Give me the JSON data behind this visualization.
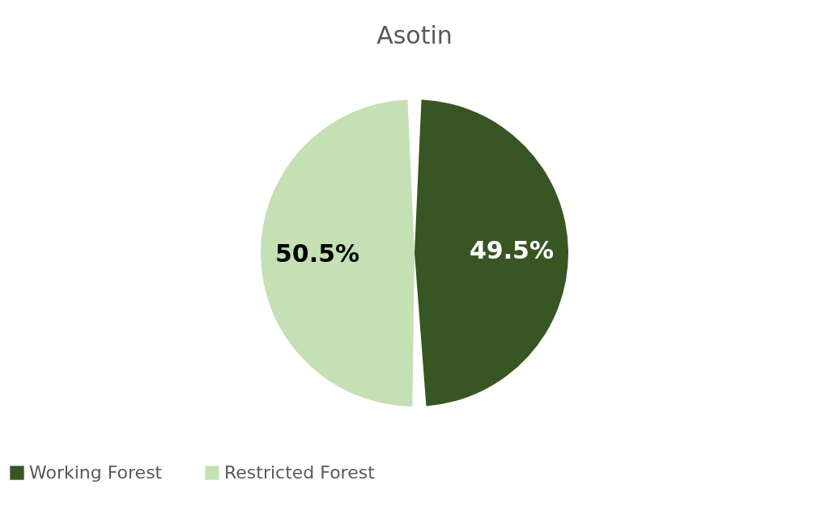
{
  "chart_data": {
    "type": "pie",
    "title": "Asotin",
    "categories": [
      "Working Forest",
      "Restricted Forest"
    ],
    "values": [
      49.5,
      50.5
    ],
    "colors": [
      "#375623",
      "#c5e0b4"
    ],
    "value_labels": [
      "49.5%",
      "50.5%"
    ],
    "legend": "bottom"
  }
}
